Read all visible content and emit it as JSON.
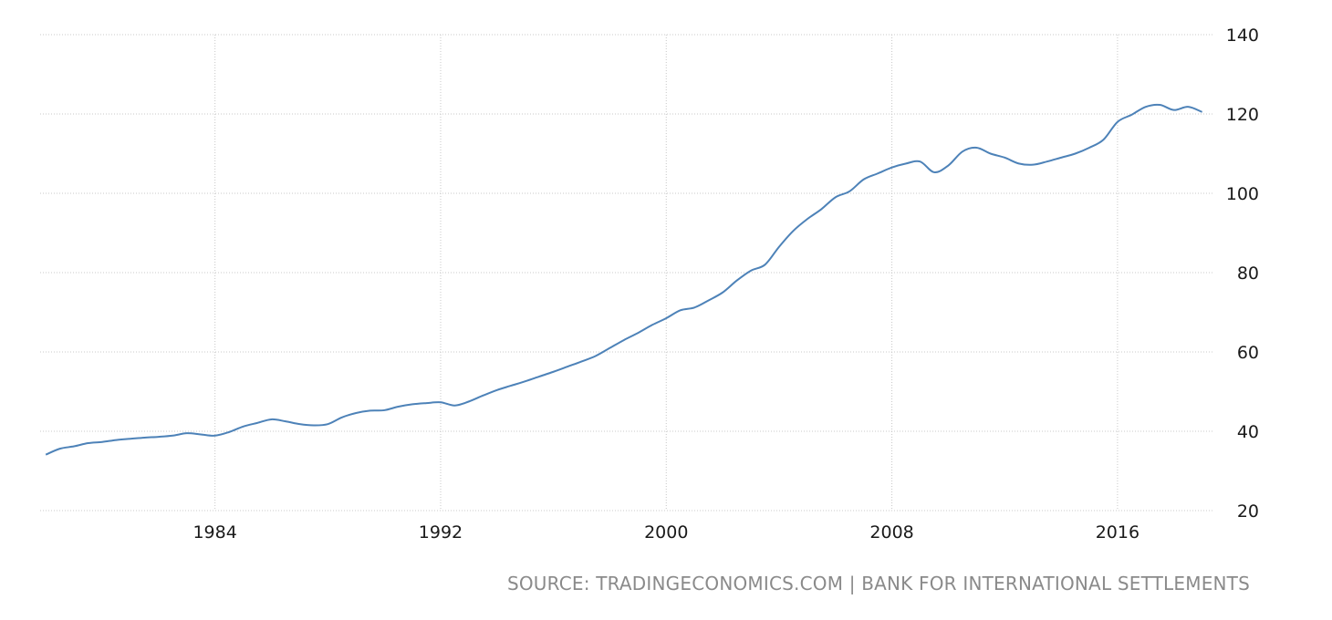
{
  "chart_data": {
    "type": "line",
    "x_tick_labels": [
      "1984",
      "1992",
      "2000",
      "2008",
      "2016"
    ],
    "y_tick_labels": [
      "20",
      "40",
      "60",
      "80",
      "100",
      "120",
      "140"
    ],
    "ylim": [
      20,
      140
    ],
    "xlim": [
      1977.8,
      2019.4
    ],
    "grid": true,
    "line_color": "#4d82b8",
    "series": [
      {
        "x": [
          1978.0,
          1978.5,
          1979.0,
          1979.5,
          1980.0,
          1980.5,
          1981.0,
          1981.5,
          1982.0,
          1982.5,
          1983.0,
          1983.5,
          1984.0,
          1984.5,
          1985.0,
          1985.5,
          1986.0,
          1986.5,
          1987.0,
          1987.5,
          1988.0,
          1988.5,
          1989.0,
          1989.5,
          1990.0,
          1990.5,
          1991.0,
          1991.5,
          1992.0,
          1992.5,
          1993.0,
          1993.5,
          1994.0,
          1994.5,
          1995.0,
          1995.5,
          1996.0,
          1996.5,
          1997.0,
          1997.5,
          1998.0,
          1998.5,
          1999.0,
          1999.5,
          2000.0,
          2000.5,
          2001.0,
          2001.5,
          2002.0,
          2002.5,
          2003.0,
          2003.5,
          2004.0,
          2004.5,
          2005.0,
          2005.5,
          2006.0,
          2006.5,
          2007.0,
          2007.5,
          2008.0,
          2008.5,
          2009.0,
          2009.5,
          2010.0,
          2010.5,
          2011.0,
          2011.5,
          2012.0,
          2012.5,
          2013.0,
          2013.5,
          2014.0,
          2014.5,
          2015.0,
          2015.5,
          2016.0,
          2016.5,
          2017.0,
          2017.5,
          2018.0,
          2018.5,
          2019.0
        ],
        "values": [
          34.1,
          35.6,
          36.2,
          37.0,
          37.3,
          37.8,
          38.1,
          38.4,
          38.6,
          38.9,
          39.5,
          39.2,
          38.9,
          39.8,
          41.2,
          42.1,
          43.0,
          42.5,
          41.8,
          41.5,
          41.8,
          43.5,
          44.6,
          45.2,
          45.3,
          46.2,
          46.8,
          47.1,
          47.3,
          46.5,
          47.5,
          49.0,
          50.4,
          51.5,
          52.6,
          53.8,
          55.0,
          56.3,
          57.6,
          59.0,
          61.0,
          63.0,
          64.8,
          66.8,
          68.5,
          70.5,
          71.2,
          73.0,
          75.0,
          78.0,
          80.5,
          82.0,
          86.5,
          90.5,
          93.5,
          96.0,
          99.0,
          100.5,
          103.5,
          105.0,
          106.5,
          107.5,
          108.0,
          105.3,
          107.0,
          110.5,
          111.5,
          110.0,
          109.0,
          107.5,
          107.2,
          108.0,
          109.0,
          110.0,
          111.5,
          113.5,
          118.0,
          119.8,
          121.8,
          122.3,
          121.0,
          121.8,
          120.5
        ]
      }
    ]
  },
  "source_text": "SOURCE: TRADINGECONOMICS.COM | BANK FOR INTERNATIONAL SETTLEMENTS"
}
